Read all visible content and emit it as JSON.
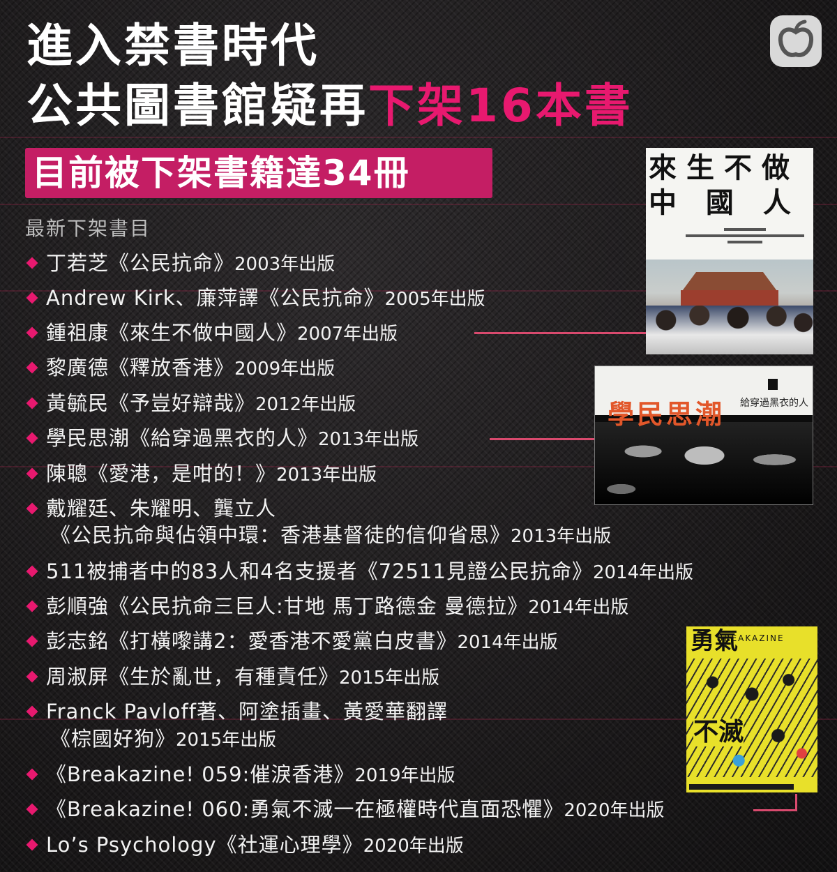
{
  "title": {
    "line1": "進入禁書時代",
    "line2_prefix": "公共圖書館疑再",
    "line2_highlight": "下架16本書"
  },
  "banner": {
    "text": "目前被下架書籍達34冊"
  },
  "subhead": "最新下架書目",
  "accent_color": "#e8196f",
  "banner_color": "#c41e64",
  "logo_icon": "apple-logo-icon",
  "books": [
    {
      "text": "丁若芝《公民抗命》",
      "year": "2003年出版"
    },
    {
      "text": "Andrew Kirk、廉萍譯《公民抗命》",
      "year": "2005年出版"
    },
    {
      "text": "鍾祖康《來生不做中國人》",
      "year": "2007年出版"
    },
    {
      "text": "黎廣德《釋放香港》",
      "year": "2009年出版"
    },
    {
      "text": "黃毓民《予豈好辯哉》",
      "year": "2012年出版"
    },
    {
      "text": "學民思潮《給穿過黑衣的人》",
      "year": "2013年出版"
    },
    {
      "text": "陳聰《愛港，是咁的！》",
      "year": "2013年出版"
    },
    {
      "text": "戴耀廷、朱耀明、龔立人",
      "cont": "《公民抗命與佔領中環：香港基督徒的信仰省思》",
      "year": "2013年出版"
    },
    {
      "text": "511被捕者中的83人和4名支援者《72511見證公民抗命》",
      "year": "2014年出版"
    },
    {
      "text": "彭順強《公民抗命三巨人:甘地 馬丁路德金 曼德拉》",
      "year": "2014年出版"
    },
    {
      "text": "彭志銘《打橫嚟講2：愛香港不愛黨白皮書》",
      "year": "2014年出版"
    },
    {
      "text": "周淑屏《生於亂世，有種責任》",
      "year": "2015年出版"
    },
    {
      "text": "Franck Pavloff著、阿塗插畫、黃愛華翻譯",
      "cont": "《棕國好狗》",
      "year": "2015年出版"
    },
    {
      "text": "《Breakazine! 059:催淚香港》",
      "year": "2019年出版"
    },
    {
      "text": "《Breakazine! 060:勇氣不滅一在極權時代直面恐懼》",
      "year": "2020年出版"
    },
    {
      "text": "Lo’s Psychology《社運心理學》",
      "year": "2020年出版"
    }
  ],
  "covers": {
    "cover1": {
      "title_line1": "來生不做",
      "title_line2": "中 國 人"
    },
    "cover2": {
      "title": "學民思潮",
      "subtitle": "給穿過黑衣的人"
    },
    "cover3": {
      "title_top": "勇氣",
      "title_bottom": "不滅",
      "brand": "BREAKAZINE"
    }
  }
}
